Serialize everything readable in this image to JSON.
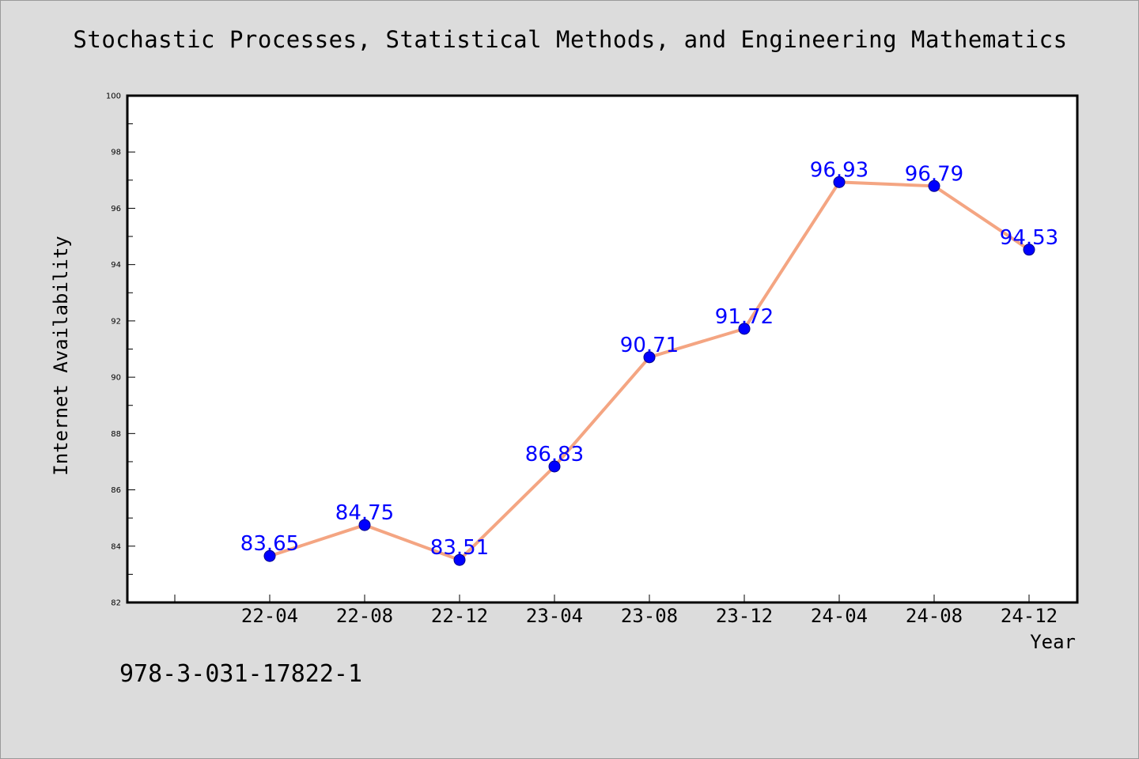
{
  "title": "Stochastic Processes, Statistical Methods, and Engineering Mathematics",
  "footer_text": "978-3-031-17822-1",
  "chart_data": {
    "type": "line",
    "categories": [
      "22-04",
      "22-08",
      "22-12",
      "23-04",
      "23-08",
      "23-12",
      "24-04",
      "24-08",
      "24-12"
    ],
    "values": [
      83.65,
      84.75,
      83.51,
      86.83,
      90.71,
      91.72,
      96.93,
      96.79,
      94.53
    ],
    "data_labels": [
      "83.65",
      "84.75",
      "83.51",
      "86.83",
      "90.71",
      "91.72",
      "96.93",
      "96.79",
      "94.53"
    ],
    "xlabel": "Year",
    "ylabel": "Internet Availability",
    "ylim": [
      82,
      100
    ],
    "yticks": [
      82,
      84,
      86,
      88,
      90,
      92,
      94,
      96,
      98,
      100
    ],
    "yminor_step": 1,
    "x_leading_empty_slots": 1,
    "grid": false,
    "colors": {
      "line": "#f4a582",
      "marker": "#0000ff",
      "marker_edge": "#00008b",
      "label": "#0000ff",
      "plot_bg": "#ffffff",
      "frame": "#000000"
    }
  }
}
